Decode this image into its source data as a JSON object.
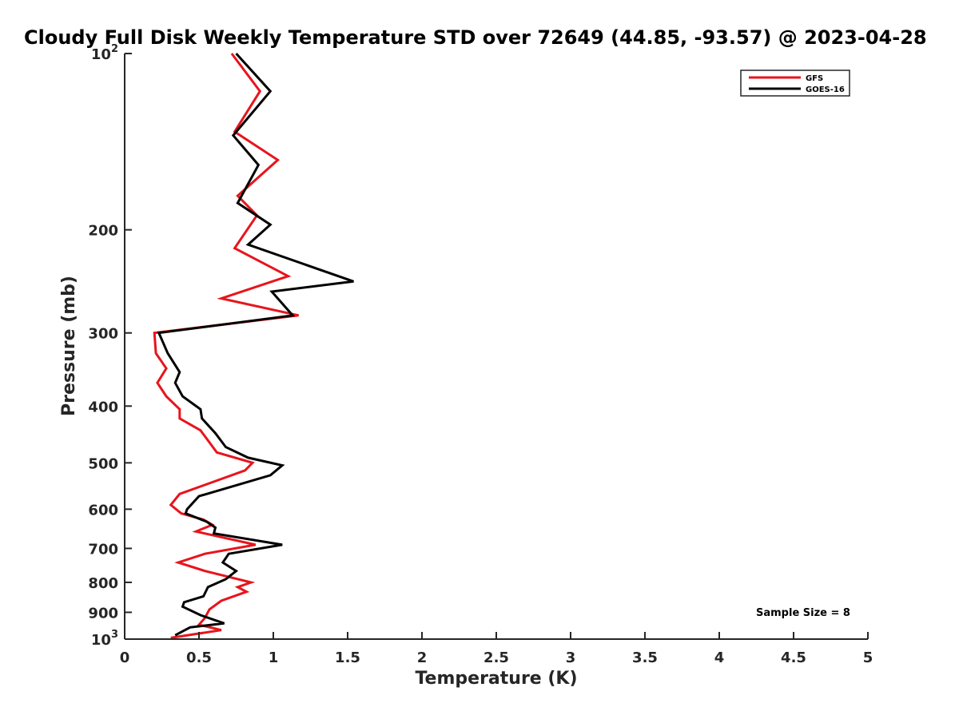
{
  "chart_data": {
    "type": "line",
    "title": "Cloudy Full Disk Weekly Temperature STD over 72649 (44.85, -93.57) @ 2023-04-28",
    "xlabel": "Temperature (K)",
    "ylabel": "Pressure (mb)",
    "xlim": [
      0,
      5
    ],
    "ylim": [
      1000,
      100
    ],
    "y_scale": "log",
    "y_reversed": true,
    "xticks": [
      "0",
      "0.5",
      "1",
      "1.5",
      "2",
      "2.5",
      "3",
      "3.5",
      "4",
      "4.5",
      "5"
    ],
    "yticks": [
      {
        "value": 100,
        "base": "10",
        "exp": "2"
      },
      {
        "value": 200,
        "label": "200"
      },
      {
        "value": 300,
        "label": "300"
      },
      {
        "value": 400,
        "label": "400"
      },
      {
        "value": 500,
        "label": "500"
      },
      {
        "value": 600,
        "label": "600"
      },
      {
        "value": 700,
        "label": "700"
      },
      {
        "value": 800,
        "label": "800"
      },
      {
        "value": 900,
        "label": "900"
      },
      {
        "value": 1000,
        "base": "10",
        "exp": "3"
      }
    ],
    "grid": false,
    "legend_position": "top-right",
    "series": [
      {
        "name": "GFS",
        "color": "#e8141c",
        "points": [
          [
            0.72,
            100
          ],
          [
            0.91,
            116
          ],
          [
            0.74,
            136
          ],
          [
            1.03,
            152
          ],
          [
            0.76,
            175
          ],
          [
            0.89,
            189
          ],
          [
            0.74,
            215
          ],
          [
            1.1,
            240
          ],
          [
            0.65,
            262
          ],
          [
            1.17,
            280
          ],
          [
            0.2,
            300
          ],
          [
            0.21,
            325
          ],
          [
            0.28,
            345
          ],
          [
            0.22,
            365
          ],
          [
            0.28,
            385
          ],
          [
            0.37,
            405
          ],
          [
            0.37,
            420
          ],
          [
            0.51,
            440
          ],
          [
            0.62,
            480
          ],
          [
            0.86,
            500
          ],
          [
            0.81,
            515
          ],
          [
            0.37,
            565
          ],
          [
            0.31,
            590
          ],
          [
            0.38,
            610
          ],
          [
            0.53,
            625
          ],
          [
            0.59,
            638
          ],
          [
            0.48,
            655
          ],
          [
            0.88,
            690
          ],
          [
            0.54,
            715
          ],
          [
            0.36,
            740
          ],
          [
            0.54,
            765
          ],
          [
            0.85,
            800
          ],
          [
            0.76,
            815
          ],
          [
            0.82,
            830
          ],
          [
            0.65,
            860
          ],
          [
            0.57,
            890
          ],
          [
            0.54,
            920
          ],
          [
            0.5,
            945
          ],
          [
            0.65,
            965
          ],
          [
            0.31,
            995
          ]
        ]
      },
      {
        "name": "GOES-16",
        "color": "#000000",
        "points": [
          [
            0.75,
            100
          ],
          [
            0.98,
            116
          ],
          [
            0.73,
            138
          ],
          [
            0.9,
            155
          ],
          [
            0.76,
            180
          ],
          [
            0.98,
            196
          ],
          [
            0.83,
            212
          ],
          [
            1.54,
            245
          ],
          [
            0.99,
            255
          ],
          [
            1.13,
            280
          ],
          [
            0.23,
            300
          ],
          [
            0.29,
            325
          ],
          [
            0.37,
            350
          ],
          [
            0.34,
            365
          ],
          [
            0.39,
            385
          ],
          [
            0.51,
            405
          ],
          [
            0.52,
            420
          ],
          [
            0.61,
            445
          ],
          [
            0.68,
            470
          ],
          [
            0.83,
            490
          ],
          [
            1.06,
            505
          ],
          [
            0.98,
            525
          ],
          [
            0.5,
            570
          ],
          [
            0.42,
            600
          ],
          [
            0.41,
            610
          ],
          [
            0.55,
            630
          ],
          [
            0.61,
            645
          ],
          [
            0.6,
            660
          ],
          [
            1.06,
            690
          ],
          [
            0.7,
            715
          ],
          [
            0.66,
            740
          ],
          [
            0.75,
            765
          ],
          [
            0.68,
            790
          ],
          [
            0.56,
            815
          ],
          [
            0.53,
            845
          ],
          [
            0.4,
            865
          ],
          [
            0.39,
            880
          ],
          [
            0.51,
            910
          ],
          [
            0.67,
            940
          ],
          [
            0.44,
            955
          ],
          [
            0.34,
            985
          ]
        ]
      }
    ],
    "annotation": "Sample Size = 8"
  }
}
